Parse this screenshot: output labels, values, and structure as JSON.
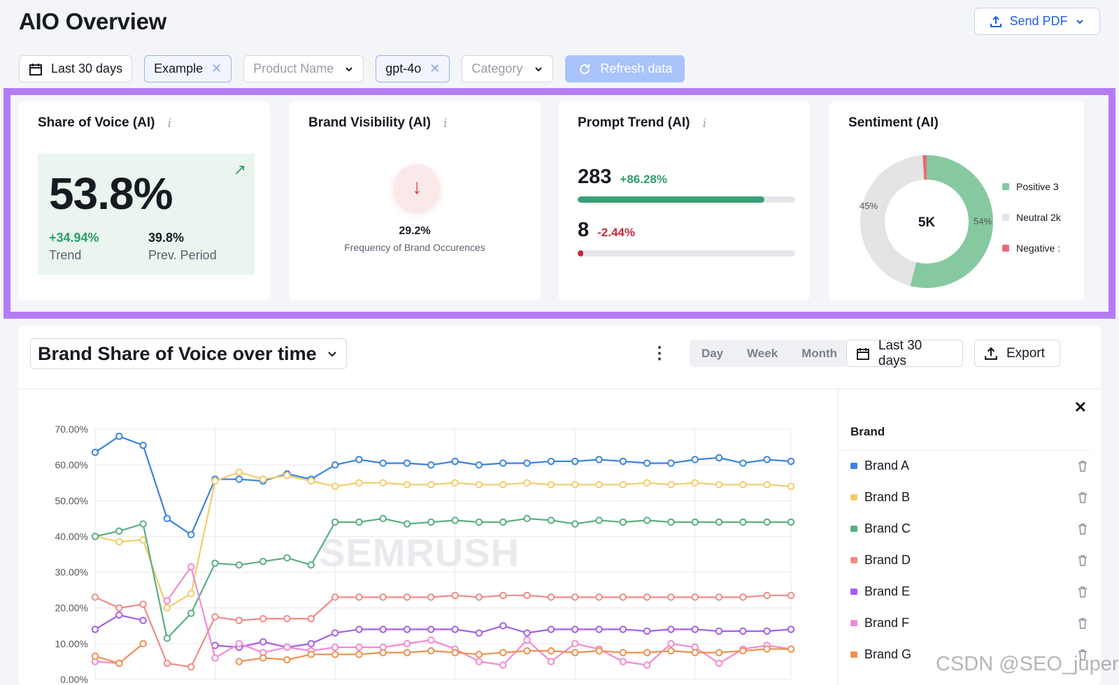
{
  "header": {
    "title": "AIO Overview",
    "send_pdf_label": "Send PDF"
  },
  "filters": {
    "date_range": "Last 30 days",
    "example": "Example",
    "product_name_placeholder": "Product Name",
    "model": "gpt-4o",
    "category_placeholder": "Category",
    "refresh_label": "Refresh data"
  },
  "kpis": {
    "share_of_voice": {
      "title": "Share of Voice (AI)",
      "value": "53.8%",
      "trend_value": "+34.94%",
      "trend_label": "Trend",
      "prev_value": "39.8%",
      "prev_label": "Prev. Period"
    },
    "brand_visibility": {
      "title": "Brand Visibility (AI)",
      "value": "29.2%",
      "label": "Frequency of Brand Occurences"
    },
    "prompt_trend": {
      "title": "Prompt Trend (AI)",
      "rows": [
        {
          "value": "283",
          "delta": "+86.28%",
          "progress": 0.86,
          "color": "#3aa077"
        },
        {
          "value": "8",
          "delta": "-2.44%",
          "progress": 0.02,
          "color": "#c5283d"
        }
      ]
    },
    "sentiment": {
      "title": "Sentiment (AI)",
      "center": "5K",
      "left_pct": "45%",
      "right_pct": "54%",
      "slices": [
        {
          "name": "Positive",
          "value": 54,
          "color": "#86c9a0"
        },
        {
          "name": "Neutral",
          "value": 45,
          "color": "#e4e4e6"
        },
        {
          "name": "Negative",
          "value": 1,
          "color": "#ec6a76"
        }
      ],
      "legend": [
        "Positive 3",
        "Neutral 2k",
        "Negative :"
      ]
    }
  },
  "main": {
    "chart_title": "Brand Share of Voice over time",
    "period_tabs": [
      "Day",
      "Week",
      "Month"
    ],
    "date_range": "Last 30 days",
    "export_label": "Export",
    "watermark": "SEMRUSH",
    "legend_header": "Brand"
  },
  "chart_data": {
    "type": "line",
    "ylim": [
      0,
      70
    ],
    "y_ticks": [
      "0.00%",
      "10.00%",
      "20.00%",
      "30.00%",
      "40.00%",
      "50.00%",
      "60.00%",
      "70.00%"
    ],
    "x": [
      1,
      2,
      3,
      4,
      5,
      6,
      7,
      8,
      9,
      10,
      11,
      12,
      13,
      14,
      15,
      16,
      17,
      18,
      19,
      20,
      21,
      22,
      23,
      24,
      25,
      26,
      27,
      28,
      29,
      30
    ],
    "series": [
      {
        "name": "Brand A",
        "color": "#3b82e0",
        "values": [
          63.5,
          68,
          65.5,
          45,
          40.5,
          56,
          56,
          55.5,
          57.5,
          56,
          60,
          61.5,
          60.5,
          60.5,
          60,
          61,
          60,
          60.5,
          60.5,
          61,
          61,
          61.5,
          61,
          60.5,
          60.5,
          61.5,
          62,
          60.5,
          61.5,
          61
        ]
      },
      {
        "name": "Brand B",
        "color": "#f2cc6b",
        "values": [
          40,
          38.5,
          39,
          20,
          24,
          55.5,
          58,
          56,
          57,
          55.5,
          54,
          55,
          55,
          54.5,
          54.5,
          55,
          54.5,
          54.5,
          55,
          54.5,
          54.5,
          54.5,
          54.5,
          55,
          54.5,
          55,
          54.5,
          54.5,
          54.5,
          54
        ]
      },
      {
        "name": "Brand C",
        "color": "#5aaf82",
        "values": [
          40,
          41.5,
          43.5,
          11.5,
          18.5,
          32.5,
          32,
          33,
          34,
          32,
          44,
          44,
          45,
          43.5,
          44,
          44.5,
          44,
          44,
          45,
          44.5,
          43.5,
          44.5,
          44,
          44.5,
          44,
          44,
          44,
          44,
          44,
          44
        ]
      },
      {
        "name": "Brand D",
        "color": "#f08a86",
        "values": [
          23,
          20,
          21,
          4.5,
          3.5,
          17.5,
          16.5,
          17,
          17,
          17,
          23,
          23,
          23,
          23,
          23,
          23.5,
          23,
          23.5,
          23.5,
          23,
          23,
          23,
          23,
          23,
          23,
          23,
          23,
          23,
          23.5,
          23.5
        ]
      },
      {
        "name": "Brand E",
        "color": "#a45ee8",
        "values": [
          14,
          18,
          16.5,
          null,
          null,
          9.5,
          9,
          10.5,
          9,
          10,
          13,
          14,
          14,
          14,
          14,
          14,
          13,
          15,
          13,
          14,
          14,
          14,
          14,
          13.5,
          14,
          14,
          13.5,
          13.5,
          13.5,
          14
        ]
      },
      {
        "name": "Brand F",
        "color": "#f28ad2",
        "values": [
          5,
          4.5,
          null,
          22,
          31.5,
          6,
          10,
          7.5,
          9,
          8,
          9,
          9,
          9,
          10,
          11,
          8.5,
          5,
          4,
          11,
          5,
          10,
          8.5,
          5,
          4,
          10,
          9,
          4.5,
          8.5,
          9.5,
          8.5
        ]
      },
      {
        "name": "Brand G",
        "color": "#f0904f",
        "values": [
          6.5,
          4.5,
          10,
          null,
          null,
          null,
          5,
          6,
          5.5,
          7,
          7,
          7,
          7.5,
          7.5,
          8,
          7.5,
          7,
          7.5,
          8,
          8,
          7.5,
          8,
          7.5,
          7.5,
          8,
          7.5,
          7.5,
          8,
          8.5,
          8.5
        ]
      }
    ]
  },
  "corner_watermark": "CSDN @SEO_juper"
}
